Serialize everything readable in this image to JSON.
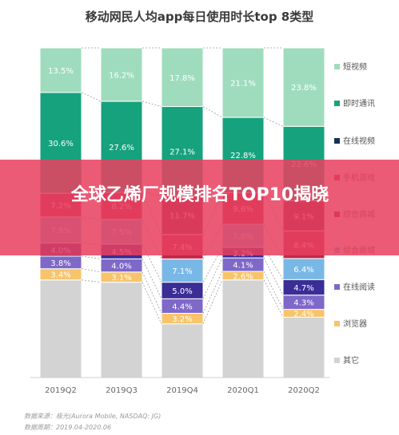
{
  "chart_data": {
    "type": "bar",
    "stacked": true,
    "title": "移动网民人均app每日使用时长top 8类型",
    "categories": [
      "2019Q2",
      "2019Q3",
      "2019Q4",
      "2020Q1",
      "2020Q2"
    ],
    "series": [
      {
        "name": "其它",
        "color": "#d3d3d3",
        "values": [
          null,
          null,
          null,
          null,
          null
        ]
      },
      {
        "name": "浏览器",
        "color": "#f7c46b",
        "values": [
          3.4,
          3.1,
          3.2,
          2.6,
          2.4
        ]
      },
      {
        "name": "在线阅读",
        "color": "#7e68c8",
        "values": [
          3.8,
          4.0,
          4.4,
          4.1,
          4.3
        ]
      },
      {
        "name": "在线视频",
        "color": "#3b2d96",
        "values": [
          4.0,
          4.5,
          5.0,
          3.2,
          4.7
        ]
      },
      {
        "name": "综合商城",
        "color": "#78b8e6",
        "values": [
          7.9,
          7.5,
          7.1,
          7.0,
          6.4
        ]
      },
      {
        "name": "手机游戏",
        "color": "#c0284a",
        "values": [
          7.2,
          8.2,
          7.4,
          9.6,
          8.4
        ]
      },
      {
        "name": "在线视频",
        "color": "#8a1a3a",
        "values": [
          null,
          null,
          11.7,
          null,
          9.1
        ]
      },
      {
        "name": "即时通讯",
        "color": "#17a27e",
        "values": [
          30.6,
          27.6,
          27.1,
          22.8,
          22.6
        ]
      },
      {
        "name": "短视频",
        "color": "#9fdcbe",
        "values": [
          13.5,
          16.2,
          17.8,
          21.1,
          23.8
        ]
      }
    ],
    "value_format": "percent",
    "ylim": [
      0,
      100
    ],
    "legend_position": "right",
    "legend": [
      {
        "name": "短视频",
        "color": "#9fdcbe"
      },
      {
        "name": "即时通讯",
        "color": "#17a27e"
      },
      {
        "name": "在线视频",
        "color": "#17305a"
      },
      {
        "name": "手机游戏",
        "color": "#c0284a"
      },
      {
        "name": "综合商城",
        "color": "#8a1a3a"
      },
      {
        "name": "综合商城",
        "color": "#78b8e6"
      },
      {
        "name": "在线阅读",
        "color": "#7e68c8"
      },
      {
        "name": "浏览器",
        "color": "#f7c46b"
      },
      {
        "name": "其它",
        "color": "#d3d3d3"
      }
    ]
  },
  "source": {
    "line1": "数据来源：极光(Aurora Mobile, NASDAQ: JG)",
    "line2": "数据周期：2019.04-2020.06"
  },
  "banner": {
    "text": "全球乙烯厂规模排名TOP10揭晓"
  }
}
